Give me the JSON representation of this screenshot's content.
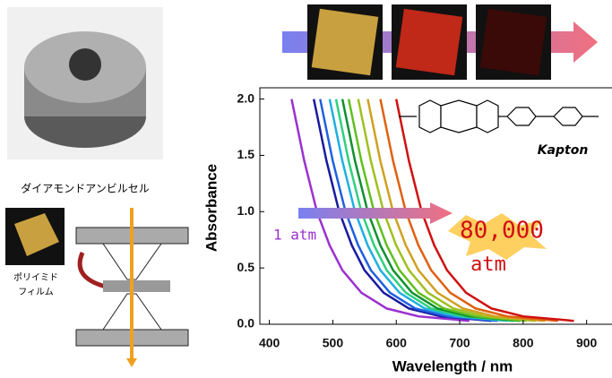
{
  "chart_data": {
    "type": "line",
    "xlabel": "Wavelength / nm",
    "ylabel": "Absorbance",
    "xlim": [
      385,
      940
    ],
    "ylim": [
      0,
      2.1
    ],
    "xticks": [
      400,
      500,
      600,
      700,
      800,
      900
    ],
    "yticks": [
      {
        "value": 0,
        "label": "0.0"
      },
      0.5,
      {
        "value": 1,
        "label": "1.0"
      },
      1.5,
      {
        "value": 2,
        "label": "2.0"
      }
    ],
    "annotations": {
      "start": "1 atm",
      "end": [
        "80,000",
        "atm"
      ],
      "molecule": "Kapton"
    },
    "series": [
      {
        "color": "#9b30d0",
        "x": [
          435,
          455,
          475,
          495,
          515,
          545,
          585,
          635,
          715
        ],
        "values": [
          2.0,
          1.45,
          1.0,
          0.7,
          0.48,
          0.28,
          0.14,
          0.07,
          0.03
        ]
      },
      {
        "color": "#1a1aa0",
        "x": [
          470,
          490,
          510,
          530,
          550,
          580,
          620,
          670,
          750
        ],
        "values": [
          2.0,
          1.45,
          1.0,
          0.7,
          0.48,
          0.28,
          0.14,
          0.07,
          0.03
        ]
      },
      {
        "color": "#2060e0",
        "x": [
          480,
          500,
          520,
          540,
          560,
          590,
          630,
          680,
          760
        ],
        "values": [
          2.0,
          1.45,
          1.0,
          0.7,
          0.48,
          0.28,
          0.14,
          0.07,
          0.03
        ]
      },
      {
        "color": "#20b0e0",
        "x": [
          495,
          515,
          535,
          555,
          575,
          605,
          645,
          695,
          775
        ],
        "values": [
          2.0,
          1.45,
          1.0,
          0.7,
          0.48,
          0.28,
          0.14,
          0.07,
          0.03
        ]
      },
      {
        "color": "#30d080",
        "x": [
          505,
          525,
          545,
          565,
          585,
          615,
          655,
          705,
          785
        ],
        "values": [
          2.0,
          1.45,
          1.0,
          0.7,
          0.48,
          0.28,
          0.14,
          0.07,
          0.03
        ]
      },
      {
        "color": "#109030",
        "x": [
          515,
          535,
          555,
          575,
          595,
          625,
          665,
          715,
          795
        ],
        "values": [
          2.0,
          1.45,
          1.0,
          0.7,
          0.48,
          0.28,
          0.14,
          0.07,
          0.03
        ]
      },
      {
        "color": "#60c020",
        "x": [
          525,
          545,
          565,
          585,
          605,
          635,
          675,
          725,
          805
        ],
        "values": [
          2.0,
          1.45,
          1.0,
          0.7,
          0.48,
          0.28,
          0.14,
          0.07,
          0.03
        ]
      },
      {
        "color": "#a0c020",
        "x": [
          540,
          560,
          580,
          600,
          620,
          650,
          690,
          740,
          820
        ],
        "values": [
          2.0,
          1.45,
          1.0,
          0.7,
          0.48,
          0.28,
          0.14,
          0.07,
          0.03
        ]
      },
      {
        "color": "#d0a020",
        "x": [
          555,
          575,
          595,
          615,
          635,
          665,
          705,
          755,
          835
        ],
        "values": [
          2.0,
          1.45,
          1.0,
          0.7,
          0.48,
          0.28,
          0.14,
          0.07,
          0.03
        ]
      },
      {
        "color": "#e06010",
        "x": [
          575,
          595,
          615,
          635,
          655,
          685,
          725,
          775,
          855
        ],
        "values": [
          2.0,
          1.45,
          1.0,
          0.7,
          0.48,
          0.28,
          0.14,
          0.07,
          0.03
        ]
      },
      {
        "color": "#d01010",
        "x": [
          600,
          620,
          640,
          660,
          680,
          710,
          750,
          800,
          880
        ],
        "values": [
          2.0,
          1.45,
          1.0,
          0.7,
          0.48,
          0.28,
          0.14,
          0.07,
          0.03
        ]
      }
    ]
  },
  "illustrations": {
    "cell_label": "ダイアモンドアンビルセル",
    "film_label": [
      "ポリイミド",
      "フィルム"
    ]
  }
}
